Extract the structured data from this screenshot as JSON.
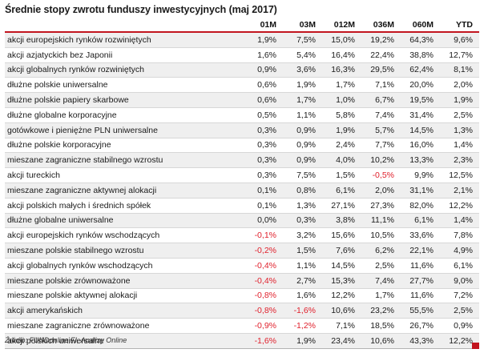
{
  "chart_data": {
    "type": "table",
    "title": "Średnie stopy zwrotu funduszy inwestycyjnych (maj 2017)",
    "columns": [
      "",
      "01M",
      "03M",
      "012M",
      "036M",
      "060M",
      "YTD"
    ],
    "rows": [
      {
        "label": "akcji europejskich rynków rozwiniętych",
        "values": [
          "1,9%",
          "7,5%",
          "15,0%",
          "19,2%",
          "64,3%",
          "9,6%"
        ]
      },
      {
        "label": "akcji azjatyckich bez Japonii",
        "values": [
          "1,6%",
          "5,4%",
          "16,4%",
          "22,4%",
          "38,8%",
          "12,7%"
        ]
      },
      {
        "label": "akcji globalnych rynków rozwiniętych",
        "values": [
          "0,9%",
          "3,6%",
          "16,3%",
          "29,5%",
          "62,4%",
          "8,1%"
        ]
      },
      {
        "label": "dłużne polskie uniwersalne",
        "values": [
          "0,6%",
          "1,9%",
          "1,7%",
          "7,1%",
          "20,0%",
          "2,0%"
        ]
      },
      {
        "label": "dłużne polskie papiery skarbowe",
        "values": [
          "0,6%",
          "1,7%",
          "1,0%",
          "6,7%",
          "19,5%",
          "1,9%"
        ]
      },
      {
        "label": "dłużne globalne korporacyjne",
        "values": [
          "0,5%",
          "1,1%",
          "5,8%",
          "7,4%",
          "31,4%",
          "2,5%"
        ]
      },
      {
        "label": "gotówkowe i pieniężne PLN uniwersalne",
        "values": [
          "0,3%",
          "0,9%",
          "1,9%",
          "5,7%",
          "14,5%",
          "1,3%"
        ]
      },
      {
        "label": "dłużne polskie korporacyjne",
        "values": [
          "0,3%",
          "0,9%",
          "2,4%",
          "7,7%",
          "16,0%",
          "1,4%"
        ]
      },
      {
        "label": "mieszane zagraniczne stabilnego wzrostu",
        "values": [
          "0,3%",
          "0,9%",
          "4,0%",
          "10,2%",
          "13,3%",
          "2,3%"
        ]
      },
      {
        "label": "akcji tureckich",
        "values": [
          "0,3%",
          "7,5%",
          "1,5%",
          "-0,5%",
          "9,9%",
          "12,5%"
        ]
      },
      {
        "label": "mieszane zagraniczne aktywnej alokacji",
        "values": [
          "0,1%",
          "0,8%",
          "6,1%",
          "2,0%",
          "31,1%",
          "2,1%"
        ]
      },
      {
        "label": "akcji polskich małych i średnich spółek",
        "values": [
          "0,1%",
          "1,3%",
          "27,1%",
          "27,3%",
          "82,0%",
          "12,2%"
        ]
      },
      {
        "label": "dłużne globalne uniwersalne",
        "values": [
          "0,0%",
          "0,3%",
          "3,8%",
          "11,1%",
          "6,1%",
          "1,4%"
        ]
      },
      {
        "label": "akcji europejskich rynków wschodzących",
        "values": [
          "-0,1%",
          "3,2%",
          "15,6%",
          "10,5%",
          "33,6%",
          "7,8%"
        ]
      },
      {
        "label": "mieszane polskie stabilnego wzrostu",
        "values": [
          "-0,2%",
          "1,5%",
          "7,6%",
          "6,2%",
          "22,1%",
          "4,9%"
        ]
      },
      {
        "label": "akcji globalnych rynków wschodzących",
        "values": [
          "-0,4%",
          "1,1%",
          "14,5%",
          "2,5%",
          "11,6%",
          "6,1%"
        ]
      },
      {
        "label": "mieszane polskie zrównoważone",
        "values": [
          "-0,4%",
          "2,7%",
          "15,3%",
          "7,4%",
          "27,7%",
          "9,0%"
        ]
      },
      {
        "label": "mieszane polskie aktywnej alokacji",
        "values": [
          "-0,8%",
          "1,6%",
          "12,2%",
          "1,7%",
          "11,6%",
          "7,2%"
        ]
      },
      {
        "label": "akcji amerykańskich",
        "values": [
          "-0,8%",
          "-1,6%",
          "10,6%",
          "23,2%",
          "55,5%",
          "2,5%"
        ]
      },
      {
        "label": "mieszane zagraniczne zrównoważone",
        "values": [
          "-0,9%",
          "-1,2%",
          "7,1%",
          "18,5%",
          "26,7%",
          "0,9%"
        ]
      },
      {
        "label": "akcji polskich uniwersalne",
        "values": [
          "-1,6%",
          "1,9%",
          "23,4%",
          "10,6%",
          "43,3%",
          "12,2%"
        ]
      }
    ],
    "source": "Źródło: FUNDonline FI, Analizy Online"
  },
  "colors": {
    "negative": "#e0202c",
    "header_rule": "#c2151f",
    "stripe": "#efefef"
  }
}
